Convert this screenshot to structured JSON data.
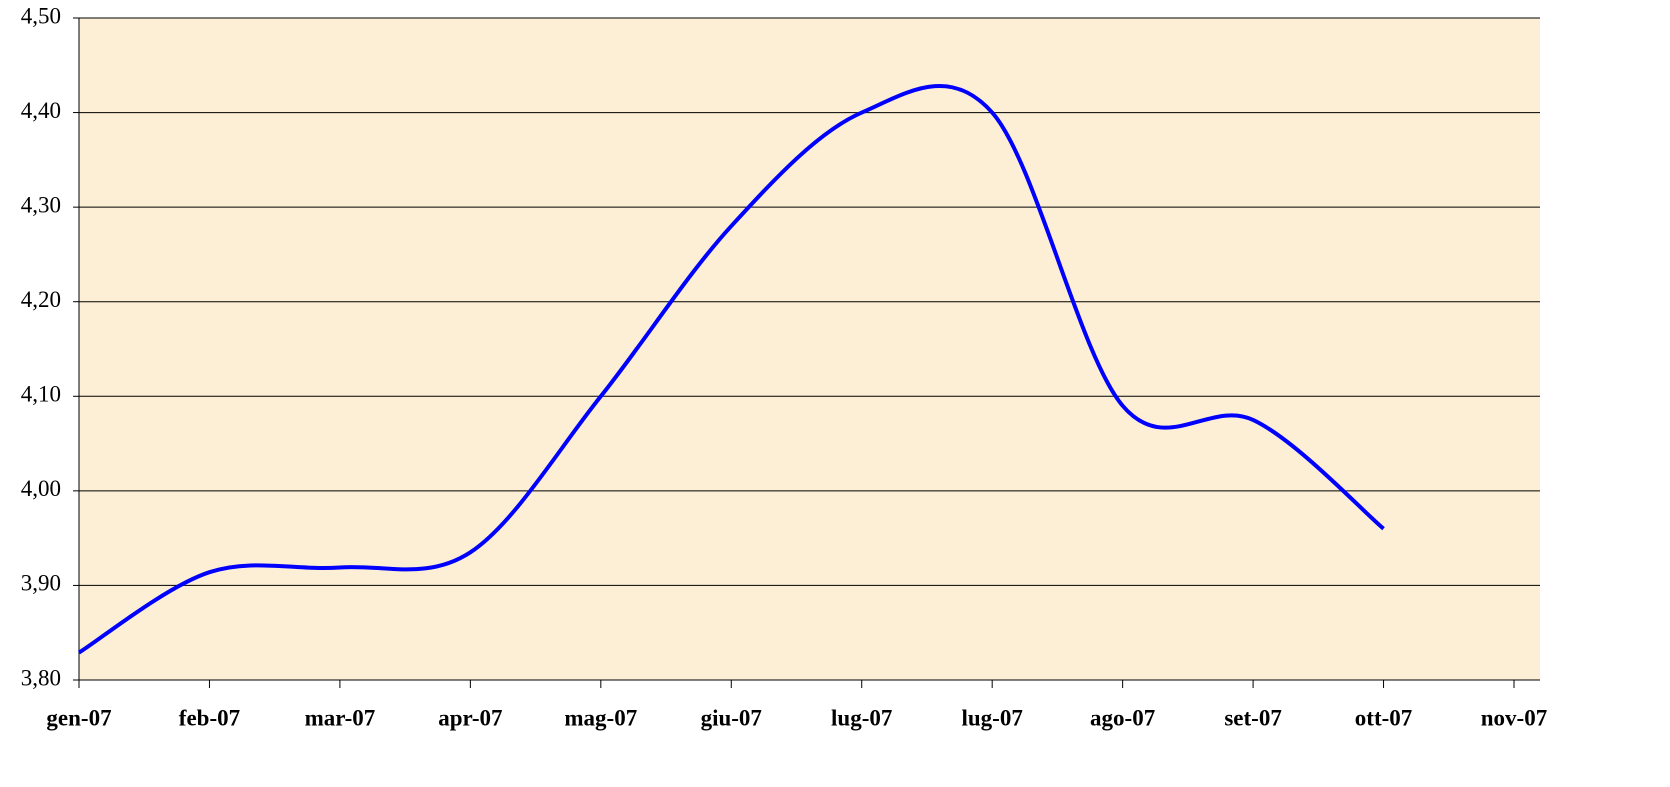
{
  "chart_data": {
    "type": "line",
    "categories": [
      "gen-07",
      "feb-07",
      "mar-07",
      "apr-07",
      "mag-07",
      "giu-07",
      "lug-07",
      "lug-07",
      "ago-07",
      "set-07",
      "ott-07",
      "nov-07"
    ],
    "series": [
      {
        "color": "#0000ff",
        "values": [
          3.829,
          3.914,
          3.919,
          3.935,
          4.1,
          4.28,
          4.4,
          4.4,
          4.09,
          4.075,
          3.96,
          null
        ]
      }
    ],
    "ylim": [
      3.8,
      4.5
    ],
    "yticks": [
      {
        "value": 3.8,
        "label": "3,80"
      },
      {
        "value": 3.9,
        "label": "3,90"
      },
      {
        "value": 4.0,
        "label": "4,00"
      },
      {
        "value": 4.1,
        "label": "4,10"
      },
      {
        "value": 4.2,
        "label": "4,20"
      },
      {
        "value": 4.3,
        "label": "4,30"
      },
      {
        "value": 4.4,
        "label": "4,40"
      },
      {
        "value": 4.5,
        "label": "4,50"
      }
    ],
    "grid": true,
    "smooth": true,
    "background": "#fcefd6"
  }
}
